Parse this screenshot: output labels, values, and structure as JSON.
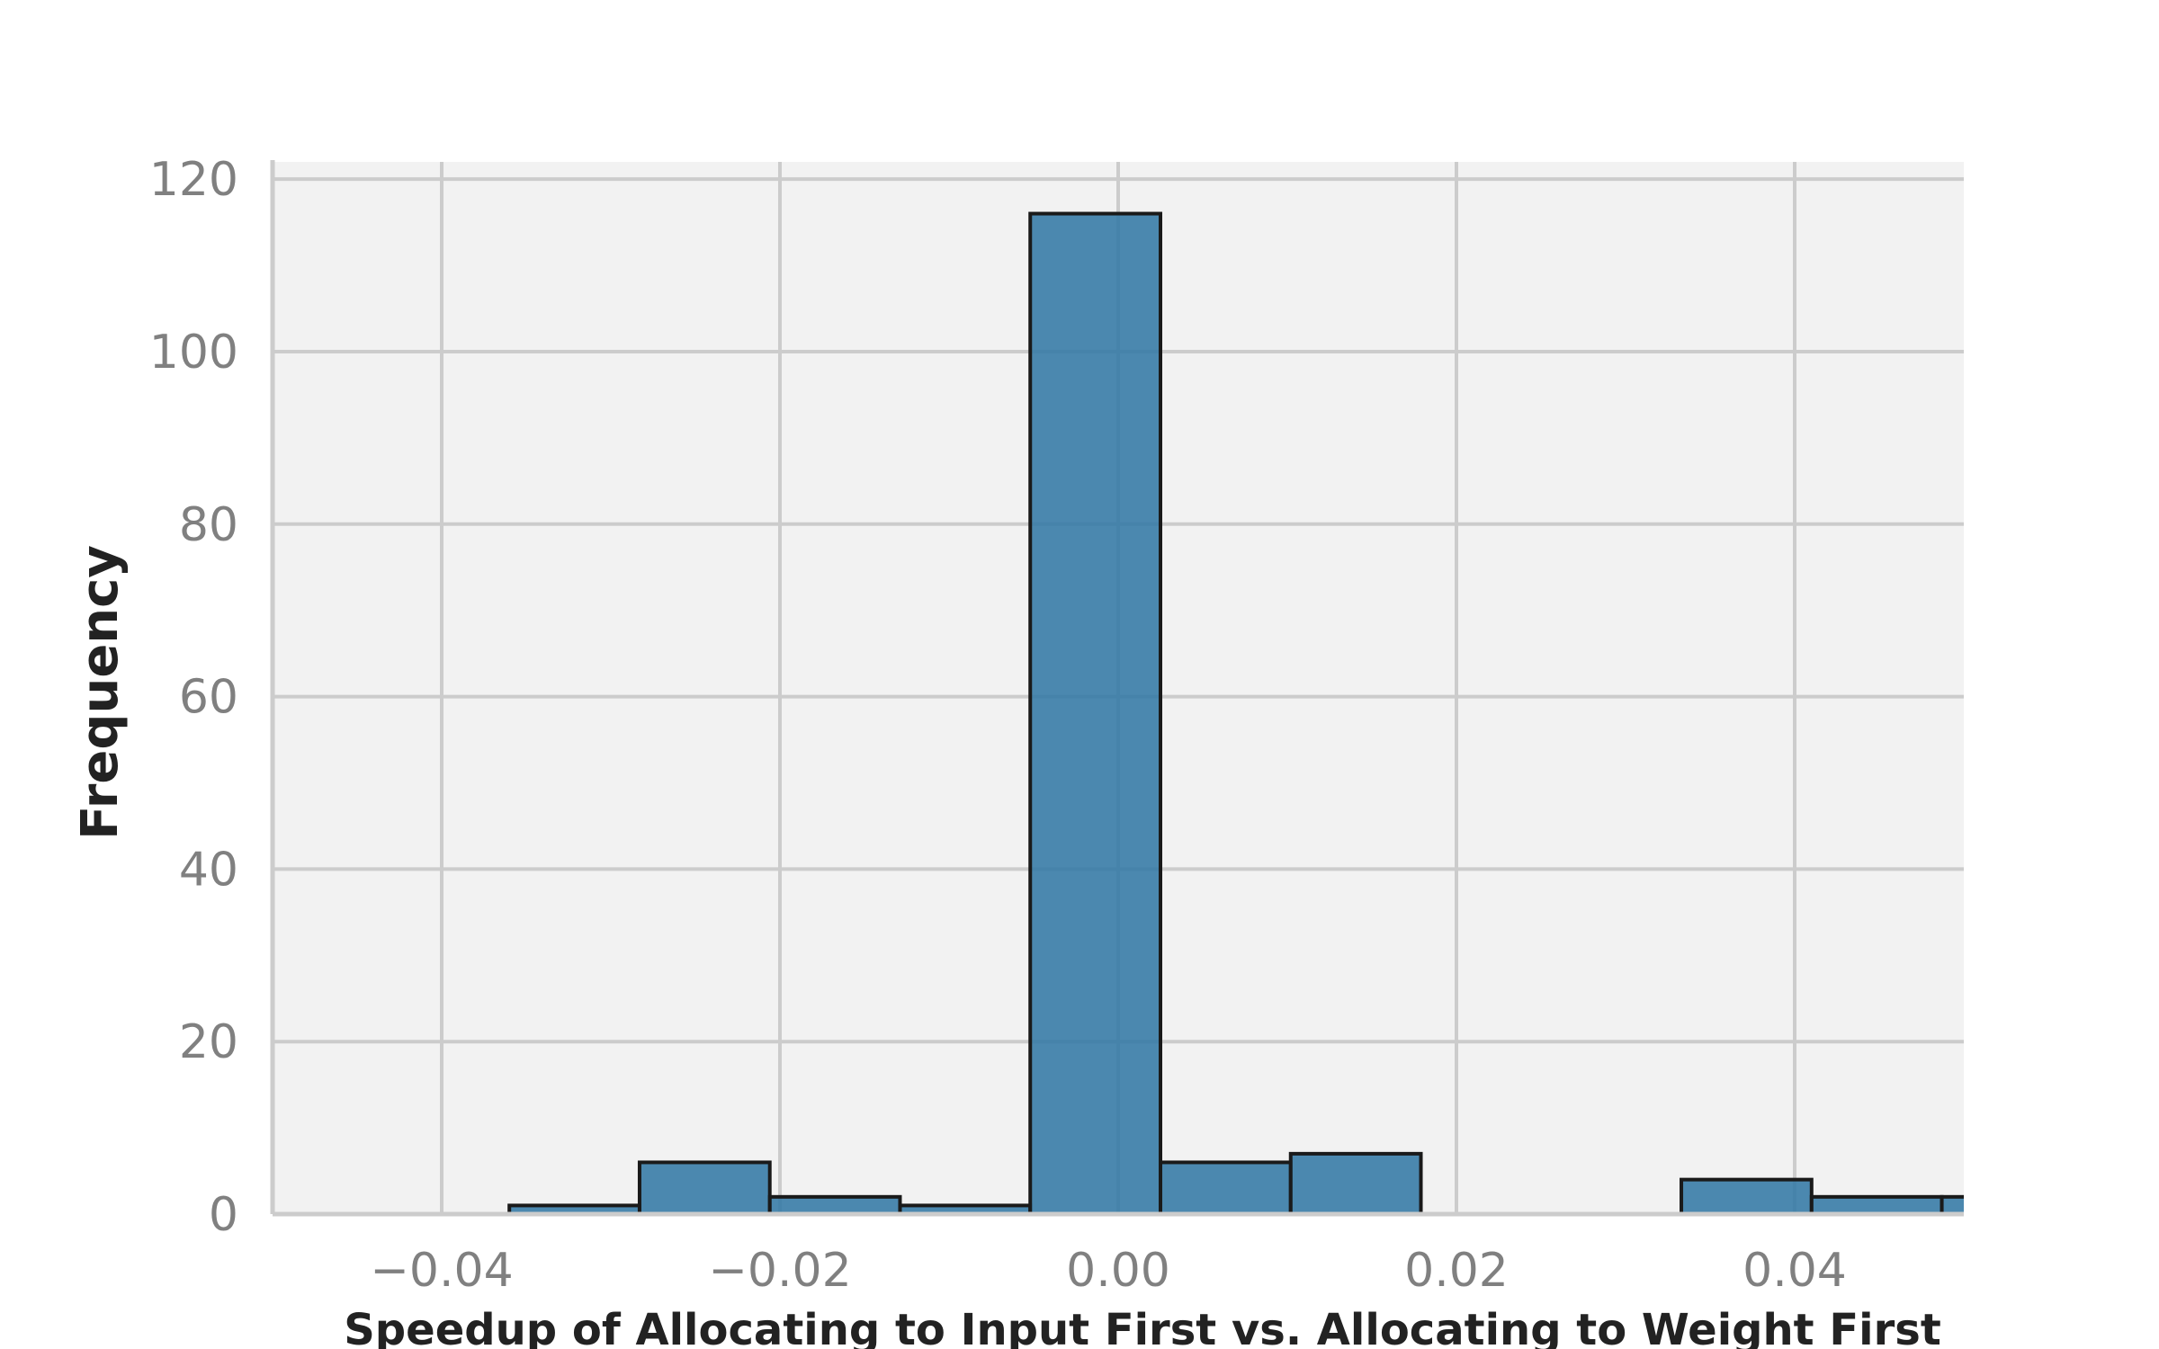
{
  "chart_data": {
    "type": "bar",
    "xlabel": "Speedup of Allocating to Input First vs. Allocating to Weight First",
    "ylabel": "Frequency",
    "xlim": [
      -0.05,
      0.05
    ],
    "ylim": [
      0,
      122
    ],
    "x_ticks": [
      -0.04,
      -0.02,
      0.0,
      0.02,
      0.04
    ],
    "x_tick_labels": [
      "−0.04",
      "−0.02",
      "0.00",
      "0.02",
      "0.04"
    ],
    "y_ticks": [
      0,
      20,
      40,
      60,
      80,
      100,
      120
    ],
    "y_tick_labels": [
      "0",
      "20",
      "40",
      "60",
      "80",
      "100",
      "120"
    ],
    "grid": true,
    "bins": [
      {
        "x0": -0.036,
        "x1": -0.0283,
        "count": 1
      },
      {
        "x0": -0.0283,
        "x1": -0.0206,
        "count": 6
      },
      {
        "x0": -0.0206,
        "x1": -0.0129,
        "count": 2
      },
      {
        "x0": -0.0129,
        "x1": -0.0052,
        "count": 1
      },
      {
        "x0": -0.0052,
        "x1": 0.0025,
        "count": 116
      },
      {
        "x0": 0.0025,
        "x1": 0.0102,
        "count": 6
      },
      {
        "x0": 0.0102,
        "x1": 0.0179,
        "count": 7
      },
      {
        "x0": 0.0333,
        "x1": 0.041,
        "count": 4
      },
      {
        "x0": 0.041,
        "x1": 0.0487,
        "count": 2
      },
      {
        "x0": 0.0487,
        "x1": 0.0564,
        "count": 2
      }
    ],
    "colors": {
      "bar_fill": "#2e75a3",
      "bar_edge": "#1a1a1a",
      "plot_background": "#f2f2f2",
      "grid": "#cccccc"
    }
  }
}
